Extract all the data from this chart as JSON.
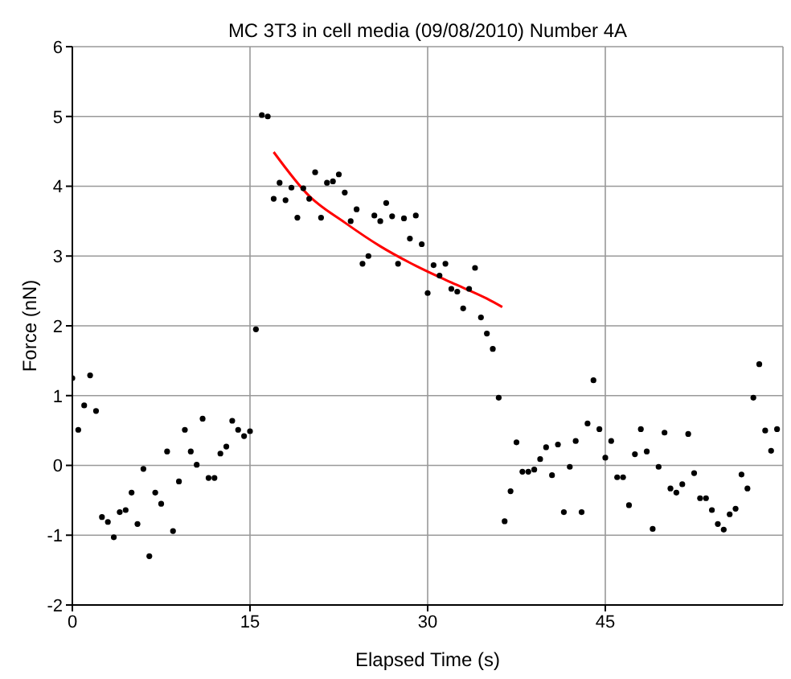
{
  "chart_data": {
    "type": "scatter",
    "title": "MC 3T3 in cell media (09/08/2010) Number 4A",
    "xlabel": "Elapsed Time (s)",
    "ylabel": "Force (nN)",
    "xlim": [
      0,
      60
    ],
    "xticks": [
      0,
      15,
      30,
      45
    ],
    "ylim": [
      -2,
      6
    ],
    "yticks": [
      -2,
      -1,
      0,
      1,
      2,
      3,
      4,
      5,
      6
    ],
    "grid": true,
    "marker": "circle",
    "series": [
      {
        "color": "#000000",
        "x": [
          0,
          0.5,
          1,
          1.5,
          2,
          2.5,
          3,
          3.5,
          4,
          4.5,
          5,
          5.5,
          6,
          6.5,
          7,
          7.5,
          8,
          8.5,
          9,
          9.5,
          10,
          10.5,
          11,
          11.5,
          12,
          12.5,
          13,
          13.5,
          14,
          14.5,
          15,
          15.5,
          16,
          16.5,
          17,
          17.5,
          18,
          18.5,
          19,
          19.5,
          20,
          20.5,
          21,
          21.5,
          22,
          22.5,
          23,
          23.5,
          24,
          24.5,
          25,
          25.5,
          26,
          26.5,
          27,
          27.5,
          28,
          28.5,
          29,
          29.5,
          30,
          30.5,
          31,
          31.5,
          32,
          32.5,
          33,
          33.5,
          34,
          34.5,
          35,
          35.5,
          36,
          36.5,
          37,
          37.5,
          38,
          38.5,
          39,
          39.5,
          40,
          40.5,
          41,
          41.5,
          42,
          42.5,
          43,
          43.5,
          44,
          44.5,
          45,
          45.5,
          46,
          46.5,
          47,
          47.5,
          48,
          48.5,
          49,
          49.5,
          50,
          50.5,
          51,
          51.5,
          52,
          52.5,
          53,
          53.5,
          54,
          54.5,
          55,
          55.5,
          56,
          56.5,
          57,
          57.5,
          58,
          58.5,
          59,
          59.5
        ],
        "values": [
          1.25,
          0.51,
          0.86,
          1.29,
          0.78,
          -0.74,
          -0.81,
          -1.03,
          -0.67,
          -0.64,
          -0.39,
          -0.84,
          -0.05,
          -1.3,
          -0.39,
          -0.55,
          0.2,
          -0.94,
          -0.23,
          0.51,
          0.2,
          0.01,
          0.67,
          -0.18,
          -0.18,
          0.17,
          0.27,
          0.64,
          0.51,
          0.42,
          0.49,
          1.95,
          5.02,
          5,
          3.82,
          4.05,
          3.8,
          3.98,
          3.55,
          3.97,
          3.82,
          4.2,
          3.55,
          4.05,
          4.07,
          4.17,
          3.91,
          3.5,
          3.67,
          2.89,
          3,
          3.58,
          3.5,
          3.76,
          3.57,
          2.89,
          3.54,
          3.25,
          3.58,
          3.17,
          2.47,
          2.87,
          2.72,
          2.89,
          2.53,
          2.49,
          2.25,
          2.53,
          2.83,
          2.12,
          1.89,
          1.67,
          0.97,
          -0.8,
          -0.37,
          0.33,
          -0.09,
          -0.09,
          -0.06,
          0.09,
          0.26,
          -0.14,
          0.3,
          -0.67,
          -0.02,
          0.35,
          -0.67,
          0.6,
          1.22,
          0.52,
          0.11,
          0.35,
          -0.17,
          -0.17,
          -0.57,
          0.16,
          0.52,
          0.2,
          -0.91,
          -0.02,
          0.47,
          -0.33,
          -0.39,
          -0.27,
          0.45,
          -0.11,
          -0.47,
          -0.47,
          -0.64,
          -0.84,
          -0.92,
          -0.7,
          -0.62,
          -0.13,
          -0.33,
          0.97,
          1.45,
          0.5,
          0.21,
          0.52
        ]
      },
      {
        "type": "line",
        "color": "#ff0000",
        "marker": "none",
        "x": [
          17,
          20,
          23,
          26,
          29,
          32,
          35,
          36.3
        ],
        "values": [
          4.49,
          3.86,
          3.48,
          3.14,
          2.86,
          2.62,
          2.39,
          2.27
        ]
      }
    ]
  }
}
